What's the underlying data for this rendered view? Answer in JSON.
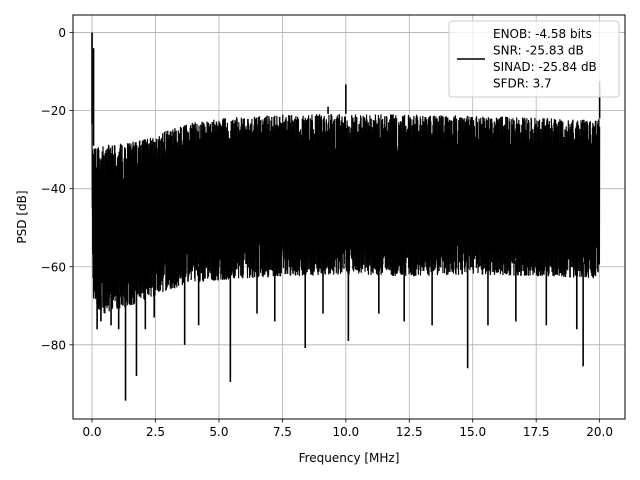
{
  "chart_data": {
    "type": "line",
    "title": "",
    "xlabel": "Frequency [MHz]",
    "ylabel": "PSD [dB]",
    "xlim": [
      -0.75,
      21.0
    ],
    "ylim": [
      -99,
      4.5
    ],
    "x_ticks": [
      0.0,
      2.5,
      5.0,
      7.5,
      10.0,
      12.5,
      15.0,
      17.5,
      20.0
    ],
    "x_tick_labels": [
      "0.0",
      "2.5",
      "5.0",
      "7.5",
      "10.0",
      "12.5",
      "15.0",
      "17.5",
      "20.0"
    ],
    "y_ticks": [
      0,
      -20,
      -40,
      -60,
      -80
    ],
    "y_tick_labels": [
      "0",
      "−20",
      "−40",
      "−60",
      "−80"
    ],
    "grid": true,
    "legend_position": "top-right",
    "series_color": "#000000",
    "series": [
      {
        "name": "ENOB: -4.58 bits\nSNR: -25.83 dB\nSINAD: -25.84 dB\nSFDR: 3.7",
        "envelope": {
          "x": [
            0.0,
            0.05,
            0.5,
            1.0,
            2.0,
            3.0,
            4.0,
            5.0,
            6.0,
            7.5,
            10.0,
            12.5,
            15.0,
            17.5,
            19.9,
            20.0
          ],
          "upper": [
            -23.5,
            -29.0,
            -28.8,
            -28.5,
            -27.5,
            -25.0,
            -23.0,
            -22.0,
            -21.5,
            -21.0,
            -20.8,
            -21.0,
            -21.3,
            -21.8,
            -22.5,
            -22.0
          ],
          "lower": [
            -47.0,
            -70.0,
            -72.0,
            -71.0,
            -69.0,
            -66.0,
            -64.0,
            -63.5,
            -63.0,
            -62.5,
            -62.0,
            -62.5,
            -62.0,
            -62.5,
            -63.0,
            -60.0
          ]
        },
        "peaks": [
          {
            "x": 0.0,
            "y": 0.0
          },
          {
            "x": 0.06,
            "y": -4.0
          },
          {
            "x": 10.0,
            "y": -13.3
          },
          {
            "x": 9.3,
            "y": -19.0
          },
          {
            "x": 20.0,
            "y": -12.5
          }
        ],
        "dips": [
          {
            "x": 0.2,
            "y": -76.0
          },
          {
            "x": 0.35,
            "y": -74.0
          },
          {
            "x": 0.75,
            "y": -75.0
          },
          {
            "x": 1.05,
            "y": -76.0
          },
          {
            "x": 1.32,
            "y": -94.3
          },
          {
            "x": 1.75,
            "y": -88.0
          },
          {
            "x": 2.1,
            "y": -76.0
          },
          {
            "x": 2.45,
            "y": -73.0
          },
          {
            "x": 3.65,
            "y": -80.0
          },
          {
            "x": 4.2,
            "y": -75.0
          },
          {
            "x": 5.45,
            "y": -89.5
          },
          {
            "x": 6.5,
            "y": -72.0
          },
          {
            "x": 7.2,
            "y": -74.0
          },
          {
            "x": 8.4,
            "y": -80.8
          },
          {
            "x": 9.1,
            "y": -72.0
          },
          {
            "x": 10.1,
            "y": -79.0
          },
          {
            "x": 11.3,
            "y": -72.0
          },
          {
            "x": 12.3,
            "y": -74.0
          },
          {
            "x": 13.4,
            "y": -75.0
          },
          {
            "x": 14.8,
            "y": -86.0
          },
          {
            "x": 15.6,
            "y": -75.0
          },
          {
            "x": 16.7,
            "y": -74.0
          },
          {
            "x": 17.9,
            "y": -75.0
          },
          {
            "x": 19.1,
            "y": -76.0
          },
          {
            "x": 19.35,
            "y": -85.5
          }
        ]
      }
    ]
  }
}
